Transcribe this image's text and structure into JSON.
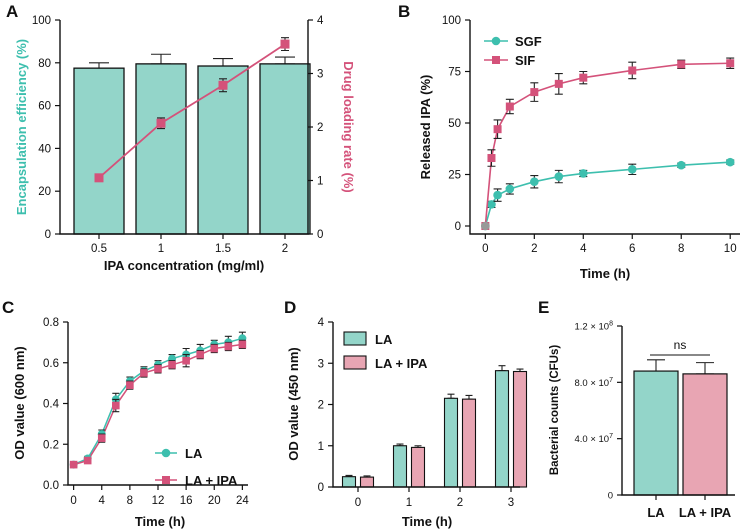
{
  "colors": {
    "teal": "#93d5c9",
    "teal_dark": "#3dbfae",
    "pink": "#e8a5b3",
    "pink_dark": "#d4527a",
    "axis": "#111111"
  },
  "chart_data": [
    {
      "panel": "A",
      "type": "bar+line",
      "categories": [
        "0.5",
        "1",
        "1.5",
        "2"
      ],
      "xlabel": "IPA concentration (mg/ml)",
      "ylabel": "Encapsulation efficiency (%)",
      "y2label": "Drug loading rate (%)",
      "ylim": [
        0,
        100
      ],
      "yticks": [
        "0",
        "20",
        "40",
        "60",
        "80",
        "100"
      ],
      "y2lim": [
        0,
        4
      ],
      "y2ticks": [
        "0",
        "1",
        "2",
        "3",
        "4"
      ],
      "bars": {
        "values": [
          77.5,
          79.5,
          78.5,
          79.5
        ],
        "errors": [
          2.5,
          4.5,
          3.5,
          3.2
        ]
      },
      "line": {
        "values": [
          1.05,
          2.07,
          2.78,
          3.55
        ],
        "errors": [
          0.04,
          0.1,
          0.12,
          0.12
        ]
      }
    },
    {
      "panel": "B",
      "type": "line",
      "xlabel": "Time (h)",
      "ylabel": "Released IPA (%)",
      "xlim": [
        -0.3,
        10.4
      ],
      "xticks": [
        "0",
        "2",
        "4",
        "6",
        "8",
        "10"
      ],
      "ylim": [
        -3,
        100
      ],
      "yticks": [
        "0",
        "25",
        "50",
        "75",
        "100"
      ],
      "x": [
        0,
        0.25,
        0.5,
        1,
        2,
        3,
        4,
        6,
        8,
        10
      ],
      "series": [
        {
          "name": "SGF",
          "values": [
            0,
            10.5,
            15,
            18,
            21.5,
            24,
            25.5,
            27.5,
            29.5,
            31
          ],
          "errors": [
            0,
            1.5,
            3,
            2.5,
            3,
            3,
            1.5,
            2.5,
            1,
            1
          ]
        },
        {
          "name": "SIF",
          "values": [
            0,
            33,
            47,
            58,
            65,
            69,
            72,
            75.5,
            78.5,
            79
          ],
          "errors": [
            0,
            4,
            4.5,
            3.5,
            4.5,
            5,
            3,
            4,
            2,
            2.5
          ]
        }
      ]
    },
    {
      "panel": "C",
      "type": "line",
      "xlabel": "Time (h)",
      "ylabel": "OD value (600 nm)",
      "xlim": [
        -0.8,
        24.8
      ],
      "xticks": [
        "0",
        "4",
        "8",
        "12",
        "16",
        "20",
        "24"
      ],
      "ylim": [
        0,
        0.8
      ],
      "yticks": [
        "0.0",
        "0.2",
        "0.4",
        "0.6",
        "0.8"
      ],
      "x": [
        0,
        2,
        4,
        6,
        8,
        10,
        12,
        14,
        16,
        18,
        20,
        22,
        24
      ],
      "series": [
        {
          "name": "LA",
          "values": [
            0.1,
            0.13,
            0.25,
            0.42,
            0.51,
            0.56,
            0.59,
            0.62,
            0.64,
            0.66,
            0.69,
            0.7,
            0.72
          ],
          "errors": [
            0.01,
            0.01,
            0.02,
            0.03,
            0.02,
            0.02,
            0.02,
            0.02,
            0.03,
            0.03,
            0.02,
            0.03,
            0.03
          ]
        },
        {
          "name": "LA + IPA",
          "values": [
            0.1,
            0.12,
            0.23,
            0.39,
            0.49,
            0.55,
            0.57,
            0.59,
            0.61,
            0.64,
            0.67,
            0.68,
            0.69
          ],
          "errors": [
            0.01,
            0.01,
            0.02,
            0.03,
            0.02,
            0.02,
            0.02,
            0.02,
            0.03,
            0.02,
            0.02,
            0.02,
            0.02
          ]
        }
      ]
    },
    {
      "panel": "D",
      "type": "bar",
      "xlabel": "Time (h)",
      "ylabel": "OD value (450 nm)",
      "categories": [
        "0",
        "1",
        "2",
        "3"
      ],
      "ylim": [
        0,
        4
      ],
      "yticks": [
        "0",
        "1",
        "2",
        "3",
        "4"
      ],
      "series": [
        {
          "name": "LA",
          "values": [
            0.25,
            1.0,
            2.15,
            2.82
          ],
          "errors": [
            0.03,
            0.04,
            0.1,
            0.12
          ]
        },
        {
          "name": "LA + IPA",
          "values": [
            0.24,
            0.96,
            2.13,
            2.8
          ],
          "errors": [
            0.03,
            0.04,
            0.09,
            0.06
          ]
        }
      ]
    },
    {
      "panel": "E",
      "type": "bar",
      "ylabel": "Bacterial counts (CFUs)",
      "categories": [
        "LA",
        "LA + IPA"
      ],
      "values": [
        88000000,
        86000000
      ],
      "errors": [
        8000000,
        8000000
      ],
      "ylim": [
        0,
        120000000
      ],
      "yticks": [
        {
          "base": "0",
          "exp": ""
        },
        {
          "base": "4.0 × 10",
          "exp": "7"
        },
        {
          "base": "8.0 × 10",
          "exp": "7"
        },
        {
          "base": "1.2 × 10",
          "exp": "8"
        }
      ],
      "annotation": "ns"
    }
  ]
}
